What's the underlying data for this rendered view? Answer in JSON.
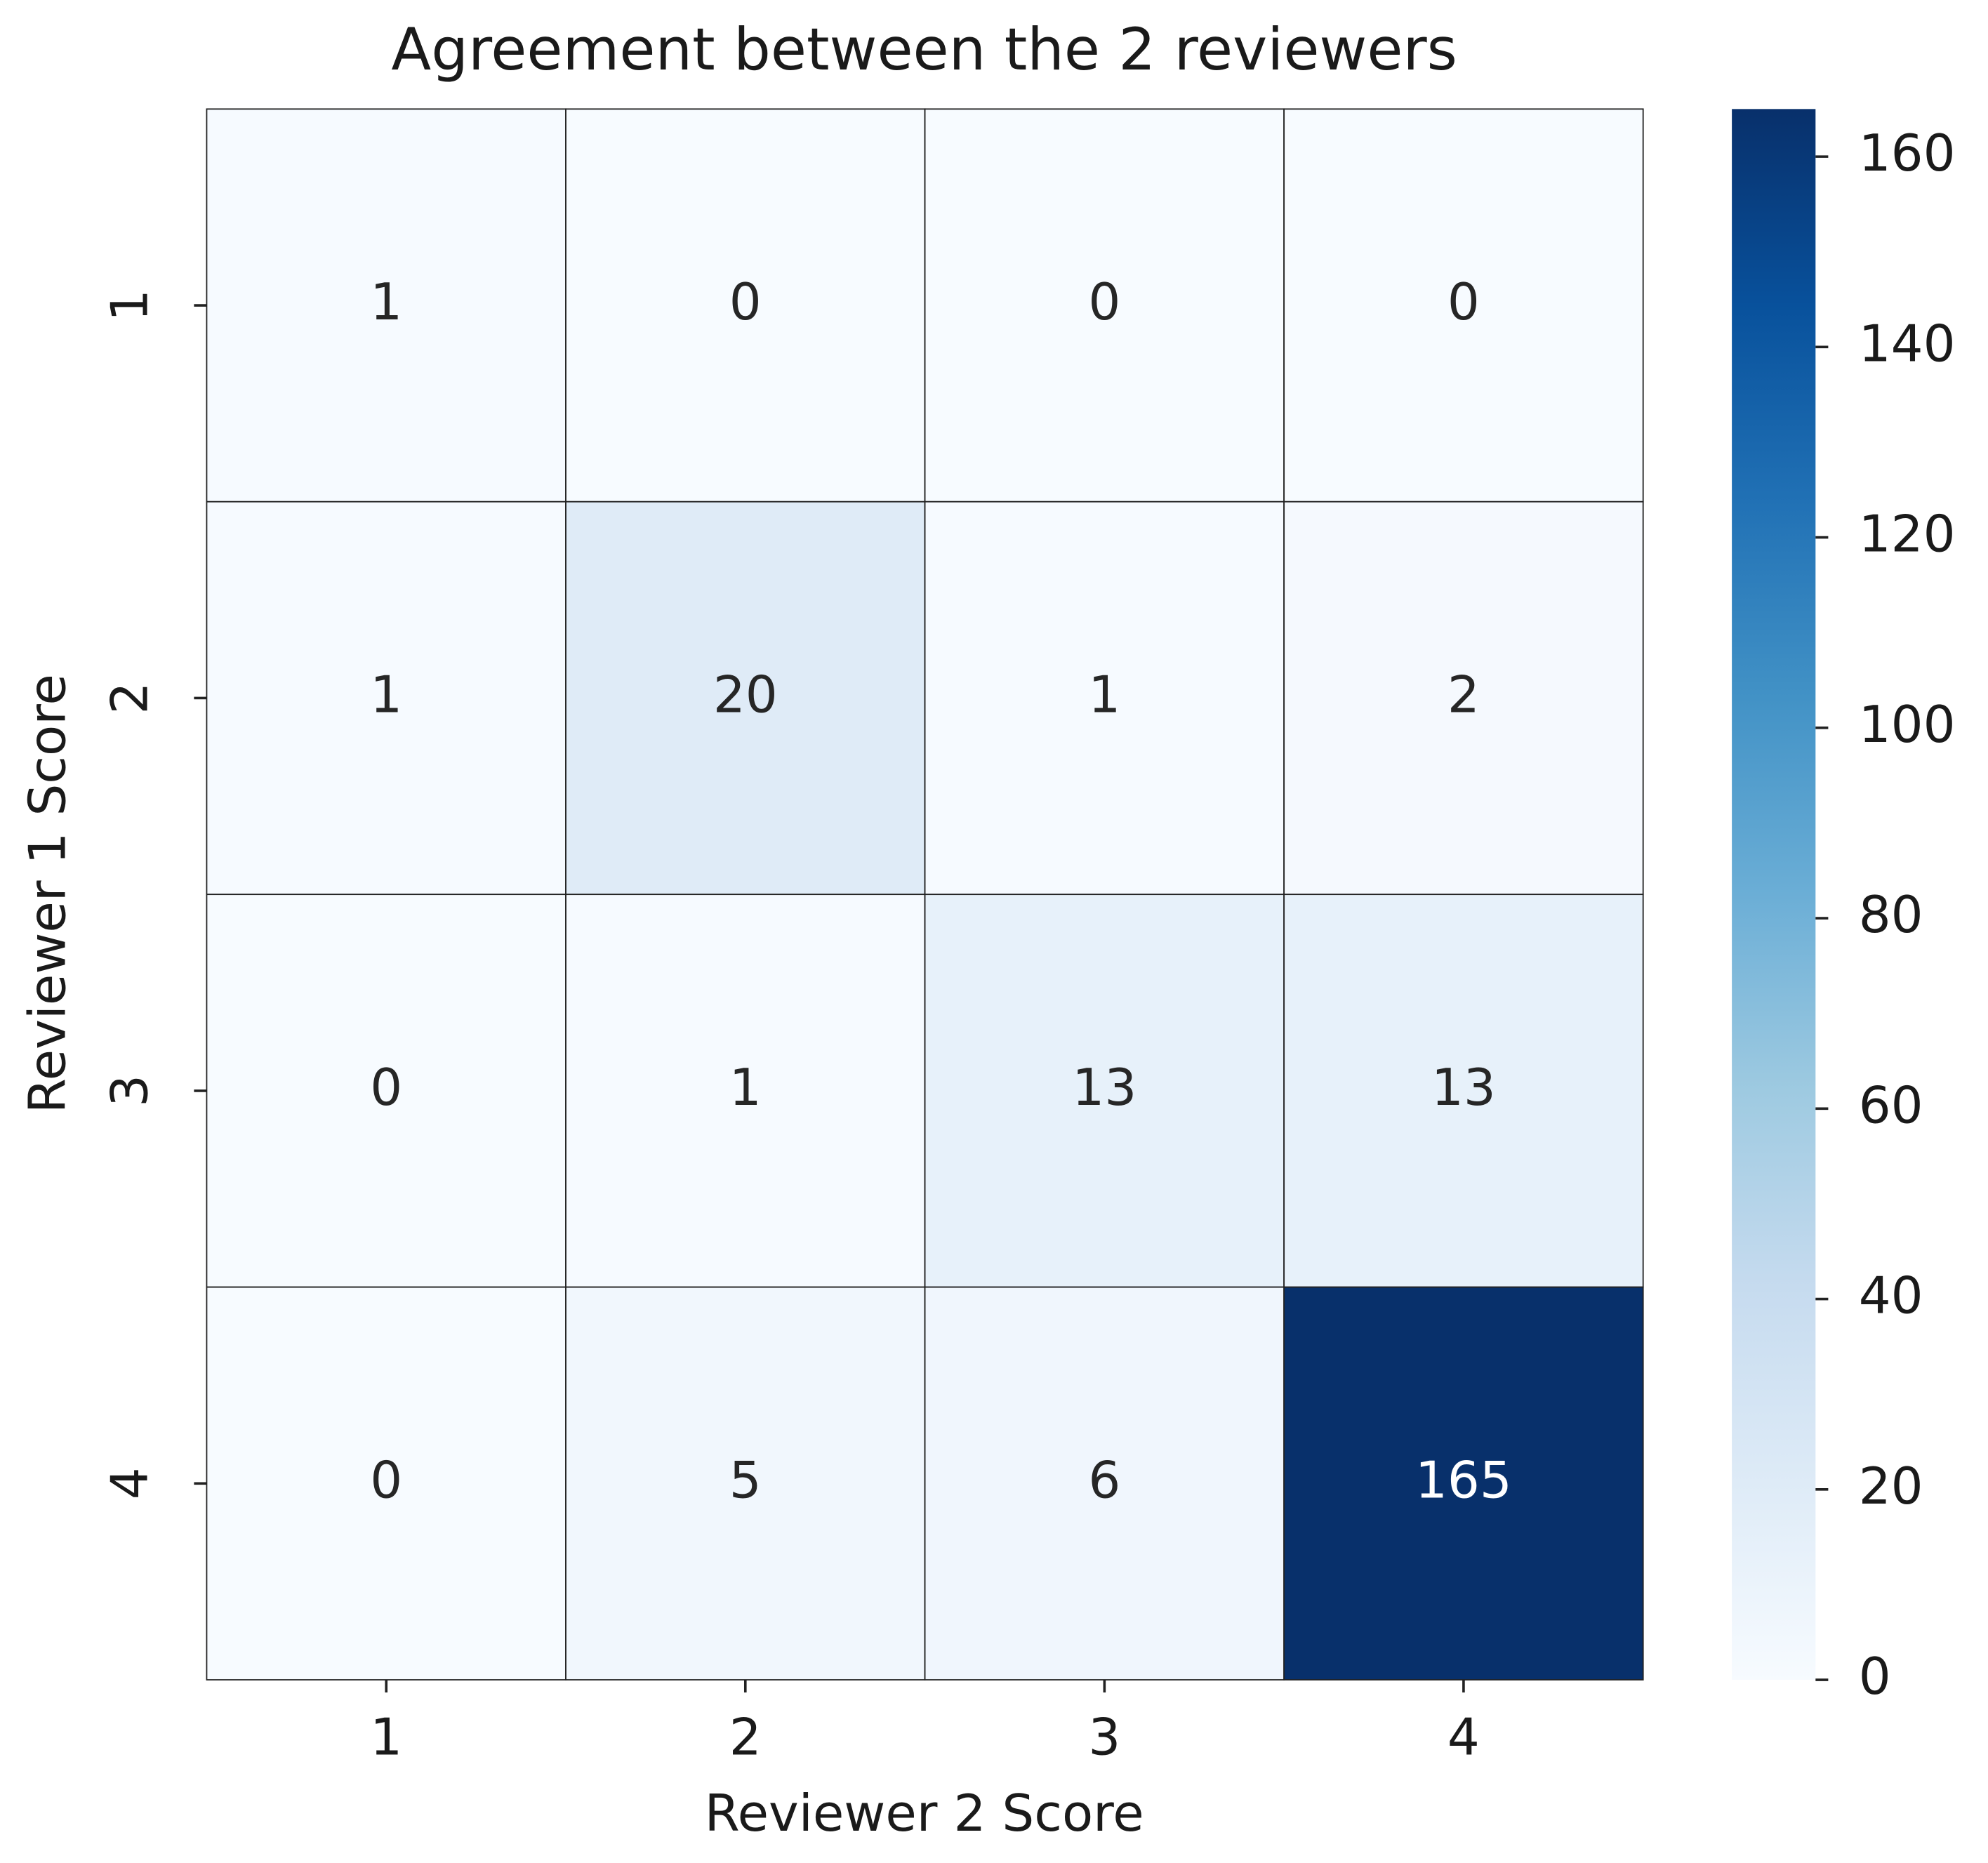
{
  "chart_data": {
    "type": "heatmap",
    "title": "Agreement between the 2 reviewers",
    "xlabel": "Reviewer 2 Score",
    "ylabel": "Reviewer 1 Score",
    "x_categories": [
      "1",
      "2",
      "3",
      "4"
    ],
    "y_categories": [
      "1",
      "2",
      "3",
      "4"
    ],
    "values": [
      [
        1,
        0,
        0,
        0
      ],
      [
        1,
        20,
        1,
        2
      ],
      [
        0,
        1,
        13,
        13
      ],
      [
        0,
        5,
        6,
        165
      ]
    ],
    "colormap": [
      "#f7fbff",
      "#deebf7",
      "#c6dbef",
      "#9ecae1",
      "#6baed6",
      "#4292c6",
      "#2171b5",
      "#08519c",
      "#08306b"
    ],
    "clim": [
      0,
      165
    ],
    "cticks": [
      0,
      20,
      40,
      60,
      80,
      100,
      120,
      140,
      160
    ]
  }
}
